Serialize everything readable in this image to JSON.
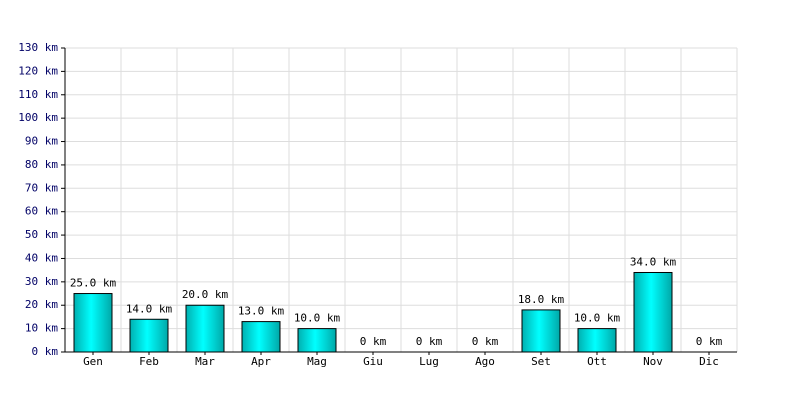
{
  "chart_data": {
    "type": "bar",
    "categories": [
      "Gen",
      "Feb",
      "Mar",
      "Apr",
      "Mag",
      "Giu",
      "Lug",
      "Ago",
      "Set",
      "Ott",
      "Nov",
      "Dic"
    ],
    "values": [
      25,
      14,
      20,
      13,
      10,
      0,
      0,
      0,
      18,
      10,
      34,
      0
    ],
    "value_labels": [
      "25.0 km",
      "14.0 km",
      "20.0 km",
      "13.0 km",
      "10.0 km",
      "0 km",
      "0 km",
      "0 km",
      "18.0 km",
      "10.0 km",
      "34.0 km",
      "0 km"
    ],
    "color": "#00d8d8",
    "ylim": [
      0,
      130
    ],
    "yticks": [
      {
        "value": 0,
        "label": "0 km"
      },
      {
        "value": 10,
        "label": "10 km"
      },
      {
        "value": 20,
        "label": "20 km"
      },
      {
        "value": 30,
        "label": "30 km"
      },
      {
        "value": 40,
        "label": "40 km"
      },
      {
        "value": 50,
        "label": "50 km"
      },
      {
        "value": 60,
        "label": "60 km"
      },
      {
        "value": 70,
        "label": "70 km"
      },
      {
        "value": 80,
        "label": "80 km"
      },
      {
        "value": 90,
        "label": "90 km"
      },
      {
        "value": 100,
        "label": "100 km"
      },
      {
        "value": 110,
        "label": "110 km"
      },
      {
        "value": 120,
        "label": "120 km"
      },
      {
        "value": 130,
        "label": "130 km"
      }
    ],
    "grid": true
  }
}
